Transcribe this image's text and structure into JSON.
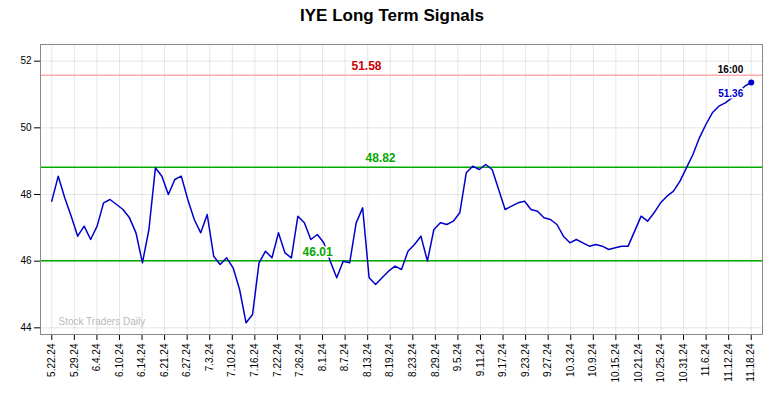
{
  "chart_data": {
    "type": "line",
    "title": "IYE Long Term Signals",
    "x": [
      0,
      0.287,
      0.5741,
      0.8611,
      1.1481,
      1.4352,
      1.7222,
      2.0093,
      2.2963,
      2.5833,
      2.8704,
      3.1574,
      3.4444,
      3.7315,
      4.0185,
      4.3056,
      4.5926,
      4.8796,
      5.1667,
      5.4537,
      5.7407,
      6.0278,
      6.3148,
      6.6019,
      6.8889,
      7.1759,
      7.463,
      7.75,
      8.037,
      8.3241,
      8.6111,
      8.8981,
      9.1852,
      9.4722,
      9.7593,
      10.0463,
      10.3333,
      10.6204,
      10.9074,
      11.1944,
      11.4815,
      11.7685,
      12.0556,
      12.3426,
      12.6296,
      12.9167,
      13.2037,
      13.4907,
      13.7778,
      14.0648,
      14.3519,
      14.6389,
      14.9259,
      15.213,
      15.5,
      15.787,
      16.0741,
      16.3611,
      16.6481,
      16.9352,
      17.2222,
      17.5093,
      17.7963,
      18.0833,
      18.3704,
      18.6574,
      18.9444,
      19.2315,
      19.5185,
      19.8056,
      20.0926,
      20.3796,
      20.6667,
      20.9537,
      21.2407,
      21.5278,
      21.8148,
      22.1019,
      22.3889,
      22.6759,
      22.963,
      23.25,
      23.537,
      23.8241,
      24.1111,
      24.3981,
      24.6852,
      24.9722,
      25.2593,
      25.5463,
      25.8333,
      26.1204,
      26.4074,
      26.6944,
      26.9815,
      27.2685,
      27.5556,
      27.8426,
      28.1296,
      28.4167,
      28.7037,
      28.9907,
      29.2778,
      29.5648,
      29.8519,
      30.1389,
      30.4259,
      30.713,
      31
    ],
    "series": [
      {
        "color": "#0000cc",
        "values": [
          47.8,
          48.55,
          47.9,
          47.35,
          46.75,
          47.05,
          46.65,
          47.05,
          47.75,
          47.85,
          47.7,
          47.55,
          47.3,
          46.85,
          45.95,
          46.95,
          48.8,
          48.55,
          48.0,
          48.45,
          48.55,
          47.85,
          47.25,
          46.85,
          47.4,
          46.15,
          45.9,
          46.1,
          45.8,
          45.15,
          44.15,
          44.4,
          45.95,
          46.3,
          46.1,
          46.85,
          46.25,
          46.1,
          47.35,
          47.15,
          46.65,
          46.8,
          46.55,
          46.0,
          45.5,
          46.0,
          45.95,
          47.15,
          47.6,
          45.5,
          45.3,
          45.5,
          45.7,
          45.85,
          45.75,
          46.3,
          46.5,
          46.75,
          46.0,
          46.95,
          47.15,
          47.1,
          47.2,
          47.45,
          48.65,
          48.85,
          48.75,
          48.9,
          48.75,
          48.15,
          47.55,
          47.65,
          47.75,
          47.8,
          47.55,
          47.5,
          47.3,
          47.25,
          47.1,
          46.75,
          46.55,
          46.65,
          46.55,
          46.45,
          46.5,
          46.45,
          46.35,
          46.4,
          46.45,
          46.45,
          46.9,
          47.35,
          47.2,
          47.45,
          47.75,
          47.95,
          48.1,
          48.4,
          48.8,
          49.2,
          49.7,
          50.1,
          50.45,
          50.65,
          50.75,
          50.9,
          51.05,
          51.25,
          51.36
        ]
      }
    ],
    "xlim": [
      -0.5,
      31.5
    ],
    "xticks": [
      {
        "value": 0,
        "label": "5.22.24"
      },
      {
        "value": 1,
        "label": "5.29.24"
      },
      {
        "value": 2,
        "label": "6.4.24"
      },
      {
        "value": 3,
        "label": "6.10.24"
      },
      {
        "value": 4,
        "label": "6.14.24"
      },
      {
        "value": 5,
        "label": "6.21.24"
      },
      {
        "value": 6,
        "label": "6.27.24"
      },
      {
        "value": 7,
        "label": "7.3.24"
      },
      {
        "value": 8,
        "label": "7.10.24"
      },
      {
        "value": 9,
        "label": "7.16.24"
      },
      {
        "value": 10,
        "label": "7.22.24"
      },
      {
        "value": 11,
        "label": "7.26.24"
      },
      {
        "value": 12,
        "label": "8.1.24"
      },
      {
        "value": 13,
        "label": "8.7.24"
      },
      {
        "value": 14,
        "label": "8.13.24"
      },
      {
        "value": 15,
        "label": "8.19.24"
      },
      {
        "value": 16,
        "label": "8.23.24"
      },
      {
        "value": 17,
        "label": "8.29.24"
      },
      {
        "value": 18,
        "label": "9.5.24"
      },
      {
        "value": 19,
        "label": "9.11.24"
      },
      {
        "value": 20,
        "label": "9.17.24"
      },
      {
        "value": 21,
        "label": "9.23.24"
      },
      {
        "value": 22,
        "label": "9.27.24"
      },
      {
        "value": 23,
        "label": "10.3.24"
      },
      {
        "value": 24,
        "label": "10.9.24"
      },
      {
        "value": 25,
        "label": "10.15.24"
      },
      {
        "value": 26,
        "label": "10.21.24"
      },
      {
        "value": 27,
        "label": "10.25.24"
      },
      {
        "value": 28,
        "label": "10.31.24"
      },
      {
        "value": 29,
        "label": "11.6.24"
      },
      {
        "value": 30,
        "label": "11.12.24"
      },
      {
        "value": 31,
        "label": "11.18.24"
      }
    ],
    "ylim": [
      43.8,
      52.5
    ],
    "yticks": [
      44,
      46,
      48,
      50,
      52
    ],
    "grid": true,
    "hlines": [
      {
        "value": 51.58,
        "label": "51.58",
        "color": "#ffaaaa",
        "label_color": "#cc0000"
      },
      {
        "value": 48.82,
        "label": "48.82",
        "color": "#00aa00",
        "label_color": "#00aa00"
      },
      {
        "value": 46.01,
        "label": "46.01",
        "color": "#00aa00",
        "label_color": "#00aa00"
      }
    ],
    "last_point": {
      "x": 31,
      "value": 51.36,
      "label": "51.36",
      "time_label": "16:00"
    },
    "watermark": "Stock Traders Daily"
  }
}
